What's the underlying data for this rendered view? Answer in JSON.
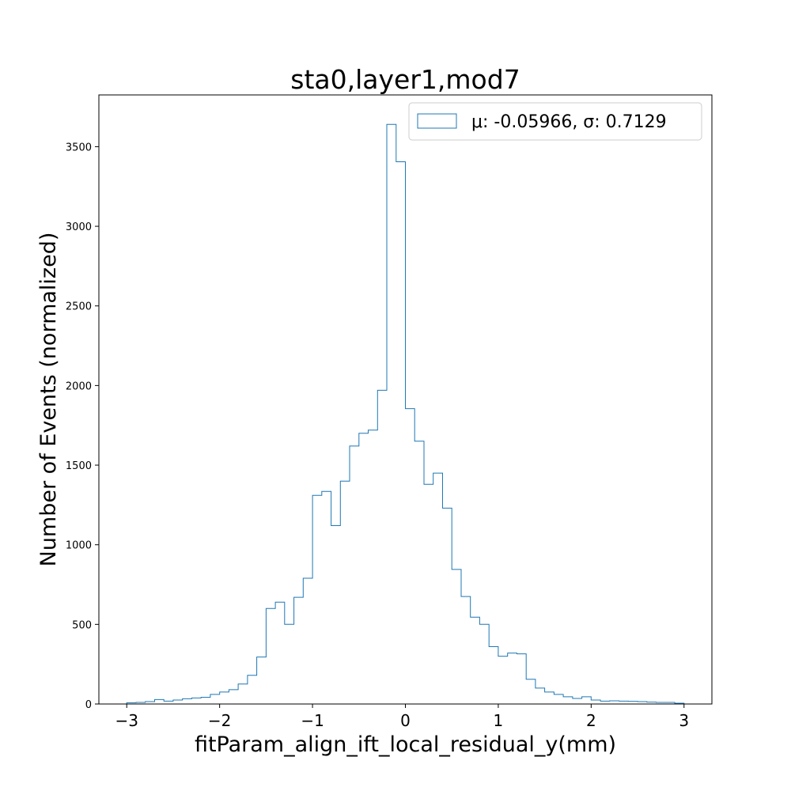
{
  "chart_data": {
    "type": "histogram",
    "title": "sta0,layer1,mod7",
    "xlabel": "fitParam_align_ift_local_residual_y(mm)",
    "ylabel": "Number of Events (normalized)",
    "xlim": [
      -3.3,
      3.3
    ],
    "ylim": [
      0,
      3825
    ],
    "xticks": [
      -3,
      -2,
      -1,
      0,
      1,
      2,
      3
    ],
    "xtick_labels": [
      "−3",
      "−2",
      "−1",
      "0",
      "1",
      "2",
      "3"
    ],
    "yticks": [
      0,
      500,
      1000,
      1500,
      2000,
      2500,
      3000,
      3500
    ],
    "ytick_labels": [
      "0",
      "500",
      "1000",
      "1500",
      "2000",
      "2500",
      "3000",
      "3500"
    ],
    "grid": false,
    "legend_position": "top-right",
    "series": [
      {
        "name": "μ: -0.05966, σ: 0.7129",
        "color": "#1f77b4",
        "bin_edges": [
          -3.0,
          -2.9,
          -2.8,
          -2.7,
          -2.6,
          -2.5,
          -2.4,
          -2.3,
          -2.2,
          -2.1,
          -2.0,
          -1.9,
          -1.8,
          -1.7,
          -1.6,
          -1.5,
          -1.4,
          -1.3,
          -1.2,
          -1.1,
          -1.0,
          -0.9,
          -0.8,
          -0.7,
          -0.6,
          -0.5,
          -0.4,
          -0.3,
          -0.2,
          -0.1,
          0.0,
          0.1,
          0.2,
          0.3,
          0.4,
          0.5,
          0.6,
          0.7,
          0.8,
          0.9,
          1.0,
          1.1,
          1.2,
          1.3,
          1.4,
          1.5,
          1.6,
          1.7,
          1.8,
          1.9,
          2.0,
          2.1,
          2.2,
          2.3,
          2.4,
          2.5,
          2.6,
          2.7,
          2.8,
          2.9,
          3.0
        ],
        "counts": [
          8,
          10,
          15,
          28,
          18,
          25,
          33,
          38,
          42,
          60,
          75,
          90,
          125,
          180,
          295,
          600,
          640,
          500,
          670,
          790,
          1310,
          1335,
          1120,
          1400,
          1620,
          1700,
          1720,
          1970,
          3640,
          3405,
          1855,
          1650,
          1380,
          1450,
          1230,
          845,
          675,
          545,
          500,
          360,
          300,
          320,
          315,
          155,
          100,
          75,
          60,
          45,
          35,
          45,
          25,
          18,
          20,
          18,
          17,
          15,
          12,
          10,
          10,
          5
        ]
      }
    ]
  }
}
